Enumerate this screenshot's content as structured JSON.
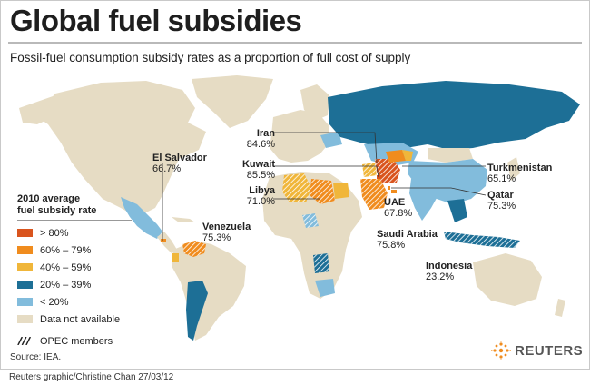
{
  "header": {
    "title": "Global fuel subsidies",
    "subtitle": "Fossil-fuel consumption subsidy rates as a proportion of full cost of supply"
  },
  "legend": {
    "title_line1": "2010 average",
    "title_line2": "fuel subsidy rate",
    "items": [
      {
        "label": "> 80%",
        "color": "#d9541e"
      },
      {
        "label": "60% – 79%",
        "color": "#f08c1e"
      },
      {
        "label": "40% – 59%",
        "color": "#f0b63a"
      },
      {
        "label": "20% – 39%",
        "color": "#1d6f96"
      },
      {
        "label": "< 20%",
        "color": "#82bcdc"
      },
      {
        "label": "Data not available",
        "color": "#e6dcc4"
      }
    ],
    "opec_label": "OPEC members"
  },
  "countries": {
    "iran": {
      "name": "Iran",
      "value": "84.6%"
    },
    "kuwait": {
      "name": "Kuwait",
      "value": "85.5%"
    },
    "libya": {
      "name": "Libya",
      "value": "71.0%"
    },
    "el_salvador": {
      "name": "El Salvador",
      "value": "66.7%"
    },
    "venezuela": {
      "name": "Venezuela",
      "value": "75.3%"
    },
    "turkmenistan": {
      "name": "Turkmenistan",
      "value": "65.1%"
    },
    "qatar": {
      "name": "Qatar",
      "value": "75.3%"
    },
    "uae": {
      "name": "UAE",
      "value": "67.8%"
    },
    "saudi_arabia": {
      "name": "Saudi Arabia",
      "value": "75.8%"
    },
    "indonesia": {
      "name": "Indonesia",
      "value": "23.2%"
    }
  },
  "footer": {
    "source": "Source: IEA.",
    "credit": "Reuters graphic/Christine Chan   27/03/12",
    "logo": "REUTERS"
  },
  "colors": {
    "ocean": "#ffffff",
    "land_na": "#e6dcc4",
    "over80": "#d9541e",
    "p60_79": "#f08c1e",
    "p40_59": "#f0b63a",
    "p20_39": "#1d6f96",
    "under20": "#82bcdc"
  }
}
